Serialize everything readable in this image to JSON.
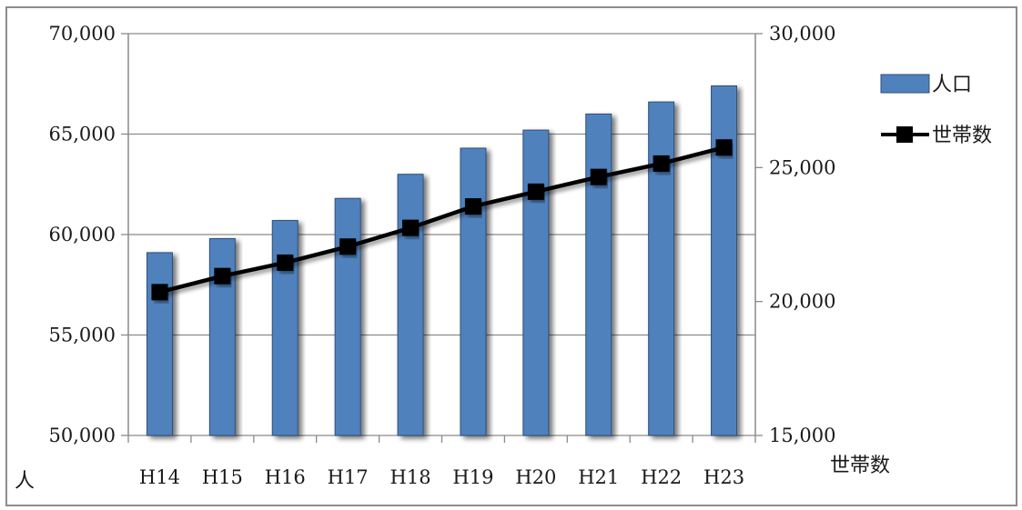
{
  "chart_data": {
    "type": "bar",
    "categories": [
      "H14",
      "H15",
      "H16",
      "H17",
      "H18",
      "H19",
      "H20",
      "H21",
      "H22",
      "H23"
    ],
    "series": [
      {
        "name": "人口",
        "type": "bar",
        "axis": "left",
        "color": "#4f81bd",
        "values": [
          59100,
          59800,
          60700,
          61800,
          63000,
          64300,
          65200,
          66000,
          66600,
          67400
        ]
      },
      {
        "name": "世帯数",
        "type": "line",
        "axis": "right",
        "color": "#000000",
        "marker": "square",
        "values": [
          20350,
          20950,
          21450,
          22050,
          22750,
          23550,
          24100,
          24650,
          25150,
          25750
        ]
      }
    ],
    "y_left": {
      "label": "人",
      "ylim": [
        50000,
        70000
      ],
      "ticks": [
        50000,
        55000,
        60000,
        65000,
        70000
      ],
      "tick_labels": [
        "50,000",
        "55,000",
        "60,000",
        "65,000",
        "70,000"
      ]
    },
    "y_right": {
      "label": "世帯数",
      "ylim": [
        15000,
        30000
      ],
      "ticks": [
        15000,
        20000,
        25000,
        30000
      ],
      "tick_labels": [
        "15,000",
        "20,000",
        "25,000",
        "30,000"
      ]
    },
    "grid": true,
    "legend_position": "right"
  }
}
